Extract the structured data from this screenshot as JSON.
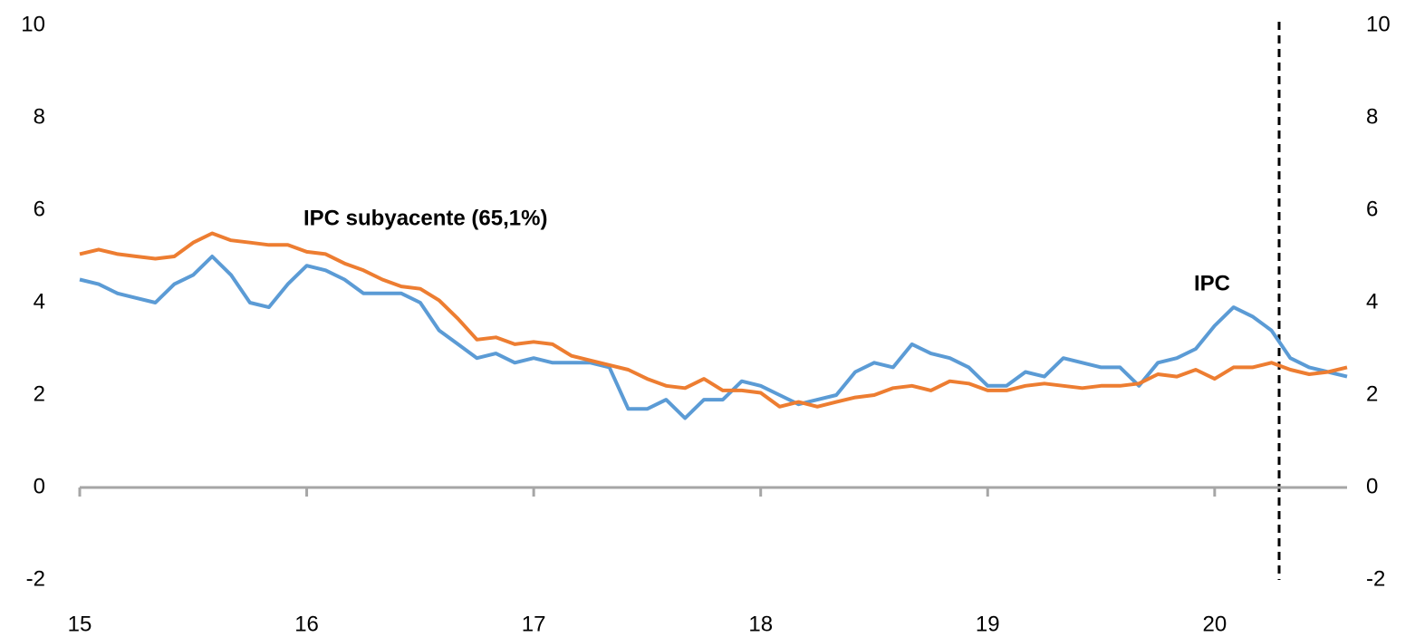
{
  "chart_data": {
    "type": "line",
    "categories": [
      "15",
      null,
      null,
      null,
      null,
      null,
      null,
      null,
      null,
      null,
      null,
      null,
      "16",
      null,
      null,
      null,
      null,
      null,
      null,
      null,
      null,
      null,
      null,
      null,
      "17",
      null,
      null,
      null,
      null,
      null,
      null,
      null,
      null,
      null,
      null,
      null,
      "18",
      null,
      null,
      null,
      null,
      null,
      null,
      null,
      null,
      null,
      null,
      null,
      "19",
      null,
      null,
      null,
      null,
      null,
      null,
      null,
      null,
      null,
      null,
      null,
      "20",
      null,
      null,
      null,
      null,
      null,
      null,
      null
    ],
    "series": [
      {
        "name": "IPC",
        "color": "#5b9bd5",
        "values": [
          4.5,
          4.4,
          4.2,
          4.1,
          4.0,
          4.4,
          4.6,
          5.0,
          4.6,
          4.0,
          3.9,
          4.4,
          4.8,
          4.7,
          4.5,
          4.2,
          4.2,
          4.2,
          4.0,
          3.4,
          3.1,
          2.8,
          2.9,
          2.7,
          2.8,
          2.7,
          2.7,
          2.7,
          2.6,
          1.7,
          1.7,
          1.9,
          1.5,
          1.9,
          1.9,
          2.3,
          2.2,
          2.0,
          1.8,
          1.9,
          2.0,
          2.5,
          2.7,
          2.6,
          3.1,
          2.9,
          2.8,
          2.6,
          2.2,
          2.2,
          2.5,
          2.4,
          2.8,
          2.7,
          2.6,
          2.6,
          2.2,
          2.7,
          2.8,
          3.0,
          3.5,
          3.9,
          3.7,
          3.4,
          2.8,
          2.6,
          2.5,
          2.4
        ]
      },
      {
        "name": "IPC subyacente (65,1%)",
        "color": "#ed7d31",
        "values": [
          5.05,
          5.15,
          5.05,
          5.0,
          4.95,
          5.0,
          5.3,
          5.5,
          5.35,
          5.3,
          5.25,
          5.25,
          5.1,
          5.05,
          4.85,
          4.7,
          4.5,
          4.35,
          4.3,
          4.05,
          3.65,
          3.2,
          3.25,
          3.1,
          3.15,
          3.1,
          2.85,
          2.75,
          2.65,
          2.55,
          2.35,
          2.2,
          2.15,
          2.35,
          2.1,
          2.1,
          2.05,
          1.75,
          1.85,
          1.75,
          1.85,
          1.95,
          2.0,
          2.15,
          2.2,
          2.1,
          2.3,
          2.25,
          2.1,
          2.1,
          2.2,
          2.25,
          2.2,
          2.15,
          2.2,
          2.2,
          2.25,
          2.45,
          2.4,
          2.55,
          2.35,
          2.6,
          2.6,
          2.7,
          2.55,
          2.45,
          2.5,
          2.6
        ]
      }
    ],
    "ylim": [
      -2,
      10
    ],
    "yticks": [
      -2,
      0,
      2,
      4,
      6,
      8,
      10
    ],
    "y2lim": [
      -2,
      10
    ],
    "y2ticks": [
      -2,
      0,
      2,
      4,
      6,
      8,
      10
    ],
    "grid": false
  }
}
